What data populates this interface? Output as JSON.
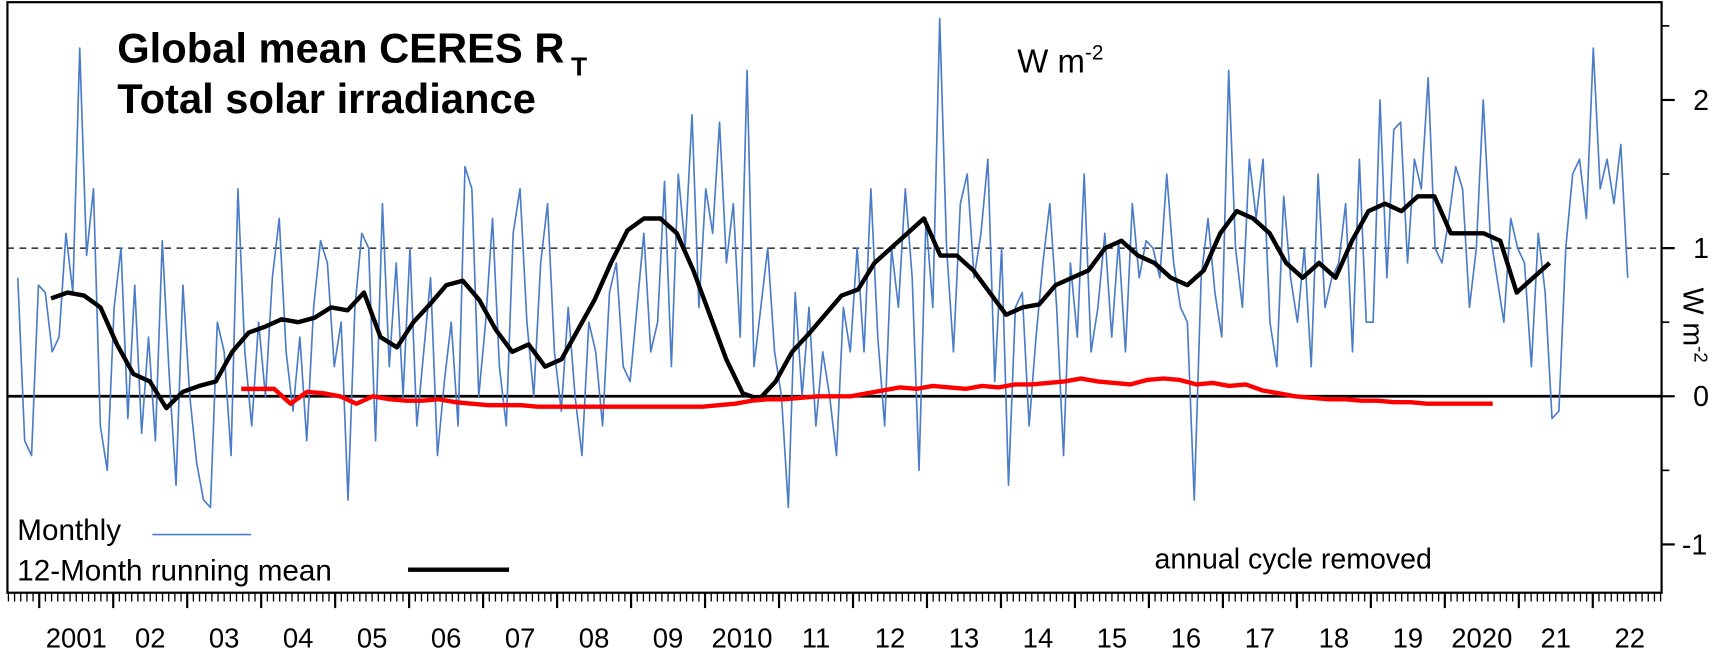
{
  "chart_data": {
    "type": "line",
    "title": "Global mean CERES R",
    "title_subscript": "T",
    "subtitle": "Total solar irradiance",
    "subtitle_color": "#ff0000",
    "units_label": "W m",
    "units_superscript": "-2",
    "y_label": "W m",
    "y_label_superscript": "-2",
    "annotation": "annual cycle removed",
    "xlim": [
      2000.57,
      2022.93
    ],
    "ylim": [
      -1.326,
      2.66
    ],
    "xticks": [
      {
        "value": 2001.5,
        "label": "2001"
      },
      {
        "value": 2002.5,
        "label": "02"
      },
      {
        "value": 2003.5,
        "label": "03"
      },
      {
        "value": 2004.5,
        "label": "04"
      },
      {
        "value": 2005.5,
        "label": "05"
      },
      {
        "value": 2006.5,
        "label": "06"
      },
      {
        "value": 2007.5,
        "label": "07"
      },
      {
        "value": 2008.5,
        "label": "08"
      },
      {
        "value": 2009.5,
        "label": "09"
      },
      {
        "value": 2010.5,
        "label": "2010"
      },
      {
        "value": 2011.5,
        "label": "11"
      },
      {
        "value": 2012.5,
        "label": "12"
      },
      {
        "value": 2013.5,
        "label": "13"
      },
      {
        "value": 2014.5,
        "label": "14"
      },
      {
        "value": 2015.5,
        "label": "15"
      },
      {
        "value": 2016.5,
        "label": "16"
      },
      {
        "value": 2017.5,
        "label": "17"
      },
      {
        "value": 2018.5,
        "label": "18"
      },
      {
        "value": 2019.5,
        "label": "19"
      },
      {
        "value": 2020.5,
        "label": "2020"
      },
      {
        "value": 2021.5,
        "label": "21"
      },
      {
        "value": 2022.5,
        "label": "22"
      }
    ],
    "yticks": [
      -1,
      0,
      1,
      2
    ],
    "hlines": [
      {
        "value": 0,
        "style": "solid"
      },
      {
        "value": 1,
        "style": "dashed"
      }
    ],
    "series": [
      {
        "name": "Monthly",
        "color": "#4a7cc7",
        "width": 1.5,
        "x_start": 2000.71,
        "x_step": 0.093,
        "values": [
          0.8,
          -0.3,
          -0.4,
          0.75,
          0.7,
          0.3,
          0.4,
          1.1,
          0.7,
          2.35,
          0.95,
          1.4,
          -0.2,
          -0.5,
          0.6,
          1.0,
          -0.15,
          0.75,
          -0.25,
          0.4,
          -0.3,
          1.05,
          0.15,
          -0.6,
          0.75,
          0.0,
          -0.45,
          -0.7,
          -0.75,
          0.5,
          0.3,
          -0.4,
          1.4,
          0.3,
          -0.2,
          0.5,
          0.0,
          0.8,
          1.2,
          0.3,
          -0.1,
          0.4,
          -0.3,
          0.6,
          1.05,
          0.9,
          0.2,
          0.5,
          -0.7,
          0.6,
          1.1,
          1.0,
          -0.3,
          1.3,
          0.2,
          0.9,
          0.0,
          1.0,
          -0.2,
          0.3,
          0.8,
          -0.4,
          0.1,
          0.5,
          -0.2,
          1.55,
          1.4,
          0.0,
          0.5,
          1.2,
          0.2,
          -0.2,
          1.1,
          1.4,
          0.5,
          0.0,
          0.9,
          1.3,
          0.3,
          -0.1,
          0.6,
          0.0,
          -0.4,
          0.5,
          0.3,
          -0.2,
          0.7,
          0.9,
          0.2,
          0.1,
          0.6,
          1.1,
          0.3,
          0.5,
          1.45,
          0.2,
          1.5,
          1.0,
          1.9,
          0.6,
          1.4,
          1.1,
          1.85,
          0.9,
          1.3,
          0.4,
          2.2,
          0.2,
          0.6,
          1.0,
          0.3,
          0.0,
          -0.75,
          0.7,
          0.0,
          0.6,
          -0.2,
          0.3,
          0.0,
          -0.4,
          0.6,
          0.3,
          1.0,
          0.3,
          1.4,
          0.4,
          -0.2,
          1.0,
          0.6,
          1.4,
          0.8,
          -0.5,
          1.2,
          0.6,
          2.55,
          1.0,
          0.3,
          1.3,
          1.5,
          0.8,
          1.1,
          1.6,
          0.1,
          1.0,
          -0.6,
          0.6,
          0.7,
          -0.2,
          0.4,
          0.9,
          1.3,
          0.6,
          -0.4,
          0.9,
          0.4,
          1.5,
          0.3,
          0.6,
          1.1,
          0.4,
          1.05,
          0.3,
          1.3,
          0.8,
          1.05,
          1.0,
          0.8,
          1.5,
          0.9,
          0.6,
          0.5,
          -0.7,
          0.8,
          1.2,
          0.7,
          0.4,
          2.2,
          1.0,
          0.6,
          1.6,
          1.2,
          1.6,
          0.5,
          0.2,
          1.35,
          0.8,
          0.5,
          1.0,
          0.2,
          1.5,
          0.6,
          0.8,
          0.9,
          1.3,
          0.3,
          1.6,
          0.5,
          0.5,
          2.0,
          0.8,
          1.8,
          1.85,
          0.9,
          1.6,
          1.4,
          2.15,
          1.0,
          0.9,
          1.2,
          1.55,
          1.4,
          0.6,
          1.0,
          2.0,
          1.1,
          0.8,
          0.5,
          1.2,
          1.0,
          0.9,
          0.2,
          1.1,
          0.7,
          -0.15,
          -0.1,
          1.0,
          1.5,
          1.6,
          1.2,
          2.35,
          1.4,
          1.6,
          1.3,
          1.7,
          0.8
        ]
      },
      {
        "name": "12-Month running mean",
        "color": "#000000",
        "width": 4,
        "x_start": 2001.16,
        "x_step": 0.2226,
        "values": [
          0.66,
          0.7,
          0.68,
          0.6,
          0.35,
          0.15,
          0.1,
          -0.08,
          0.03,
          0.07,
          0.1,
          0.3,
          0.43,
          0.47,
          0.52,
          0.5,
          0.53,
          0.6,
          0.58,
          0.7,
          0.4,
          0.33,
          0.5,
          0.62,
          0.75,
          0.78,
          0.65,
          0.45,
          0.3,
          0.35,
          0.2,
          0.25,
          0.45,
          0.65,
          0.9,
          1.12,
          1.2,
          1.2,
          1.1,
          0.85,
          0.55,
          0.25,
          0.02,
          -0.02,
          0.1,
          0.3,
          0.42,
          0.55,
          0.68,
          0.72,
          0.9,
          1.0,
          1.1,
          1.2,
          0.95,
          0.95,
          0.85,
          0.7,
          0.55,
          0.6,
          0.62,
          0.75,
          0.8,
          0.85,
          1.0,
          1.05,
          0.95,
          0.9,
          0.8,
          0.75,
          0.85,
          1.1,
          1.25,
          1.2,
          1.1,
          0.9,
          0.8,
          0.9,
          0.8,
          1.05,
          1.25,
          1.3,
          1.25,
          1.35,
          1.35,
          1.1,
          1.1,
          1.1,
          1.05,
          0.7,
          0.8,
          0.9
        ]
      },
      {
        "color": "#ff0000",
        "width": 4,
        "x_start": 2003.73,
        "x_step": 0.2226,
        "values": [
          0.05,
          0.05,
          0.05,
          -0.05,
          0.03,
          0.02,
          0.0,
          -0.05,
          0.0,
          -0.02,
          -0.03,
          -0.03,
          -0.02,
          -0.04,
          -0.05,
          -0.06,
          -0.06,
          -0.06,
          -0.07,
          -0.07,
          -0.07,
          -0.07,
          -0.07,
          -0.07,
          -0.07,
          -0.07,
          -0.07,
          -0.07,
          -0.07,
          -0.06,
          -0.05,
          -0.03,
          -0.02,
          -0.02,
          -0.01,
          0.0,
          0.0,
          0.0,
          0.02,
          0.04,
          0.06,
          0.05,
          0.07,
          0.06,
          0.05,
          0.07,
          0.06,
          0.08,
          0.08,
          0.09,
          0.1,
          0.12,
          0.1,
          0.09,
          0.08,
          0.11,
          0.12,
          0.11,
          0.08,
          0.09,
          0.07,
          0.08,
          0.04,
          0.02,
          0.0,
          -0.01,
          -0.02,
          -0.02,
          -0.03,
          -0.03,
          -0.04,
          -0.04,
          -0.05,
          -0.05,
          -0.05,
          -0.05,
          -0.05
        ]
      }
    ]
  }
}
